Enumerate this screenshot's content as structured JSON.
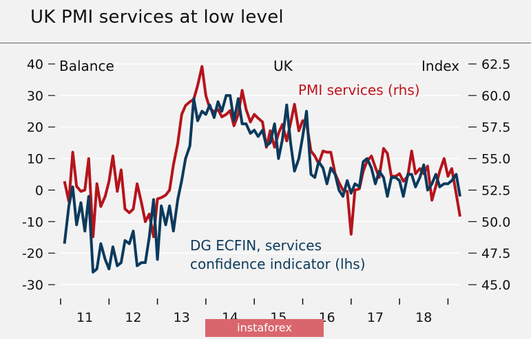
{
  "title": "UK PMI services at low level",
  "watermark": "instaforex",
  "chart_data": {
    "type": "line",
    "title": "UK PMI services at low level",
    "header_left": "Balance",
    "header_center": "UK",
    "header_right": "Index",
    "y_left": {
      "ticks": [
        40,
        30,
        20,
        10,
        0,
        -10,
        -20,
        -30
      ],
      "ylim": [
        -30,
        40
      ]
    },
    "y_right": {
      "ticks": [
        "62.5",
        "60.0",
        "57.5",
        "55.0",
        "52.5",
        "50.0",
        "47.5",
        "45.0"
      ],
      "ylim": [
        45.0,
        62.5
      ]
    },
    "x_ticks": [
      "11",
      "12",
      "13",
      "14",
      "15",
      "16",
      "17",
      "18"
    ],
    "x_range": [
      2010.5,
      2018.75
    ],
    "grid": true,
    "colors": {
      "pmi": "#b5141c",
      "dgecfin": "#0c3a5c"
    },
    "series": [
      {
        "name": "PMI services (rhs)",
        "axis": "right",
        "points": [
          [
            2010.58,
            53.2
          ],
          [
            2010.67,
            51.6
          ],
          [
            2010.75,
            55.5
          ],
          [
            2010.83,
            52.8
          ],
          [
            2010.92,
            52.4
          ],
          [
            2011.0,
            52.5
          ],
          [
            2011.08,
            55.0
          ],
          [
            2011.17,
            48.8
          ],
          [
            2011.25,
            53.0
          ],
          [
            2011.33,
            51.2
          ],
          [
            2011.42,
            52.0
          ],
          [
            2011.5,
            53.2
          ],
          [
            2011.58,
            55.2
          ],
          [
            2011.67,
            52.4
          ],
          [
            2011.75,
            54.1
          ],
          [
            2011.83,
            51.0
          ],
          [
            2011.92,
            50.7
          ],
          [
            2012.0,
            51.0
          ],
          [
            2012.08,
            53.0
          ],
          [
            2012.17,
            51.5
          ],
          [
            2012.25,
            50.0
          ],
          [
            2012.33,
            50.6
          ],
          [
            2012.42,
            48.8
          ],
          [
            2012.5,
            51.8
          ],
          [
            2012.58,
            51.9
          ],
          [
            2012.67,
            52.1
          ],
          [
            2012.75,
            52.5
          ],
          [
            2012.83,
            54.5
          ],
          [
            2012.92,
            56.2
          ],
          [
            2013.0,
            58.5
          ],
          [
            2013.08,
            59.2
          ],
          [
            2013.17,
            59.5
          ],
          [
            2013.25,
            59.7
          ],
          [
            2013.33,
            60.8
          ],
          [
            2013.42,
            62.3
          ],
          [
            2013.5,
            60.0
          ],
          [
            2013.58,
            59.0
          ],
          [
            2013.67,
            58.7
          ],
          [
            2013.75,
            58.9
          ],
          [
            2013.83,
            58.3
          ],
          [
            2013.92,
            58.5
          ],
          [
            2014.0,
            58.8
          ],
          [
            2014.08,
            57.6
          ],
          [
            2014.17,
            58.5
          ],
          [
            2014.25,
            60.4
          ],
          [
            2014.33,
            58.9
          ],
          [
            2014.42,
            57.9
          ],
          [
            2014.5,
            58.5
          ],
          [
            2014.58,
            58.2
          ],
          [
            2014.67,
            57.9
          ],
          [
            2014.75,
            55.9
          ],
          [
            2014.83,
            57.2
          ],
          [
            2014.92,
            55.9
          ],
          [
            2015.0,
            57.0
          ],
          [
            2015.08,
            57.7
          ],
          [
            2015.17,
            56.4
          ],
          [
            2015.25,
            57.8
          ],
          [
            2015.33,
            59.3
          ],
          [
            2015.42,
            57.2
          ],
          [
            2015.5,
            58.0
          ],
          [
            2015.58,
            57.8
          ],
          [
            2015.67,
            55.6
          ],
          [
            2015.75,
            55.2
          ],
          [
            2015.83,
            54.6
          ],
          [
            2015.92,
            55.6
          ],
          [
            2016.0,
            55.5
          ],
          [
            2016.08,
            55.5
          ],
          [
            2016.17,
            53.8
          ],
          [
            2016.25,
            53.1
          ],
          [
            2016.33,
            52.5
          ],
          [
            2016.42,
            52.4
          ],
          [
            2016.5,
            49.0
          ],
          [
            2016.58,
            52.5
          ],
          [
            2016.67,
            52.6
          ],
          [
            2016.75,
            54.0
          ],
          [
            2016.83,
            54.8
          ],
          [
            2016.92,
            55.2
          ],
          [
            2017.0,
            54.3
          ],
          [
            2017.08,
            53.5
          ],
          [
            2017.17,
            55.8
          ],
          [
            2017.25,
            55.4
          ],
          [
            2017.33,
            53.6
          ],
          [
            2017.42,
            53.6
          ],
          [
            2017.5,
            53.8
          ],
          [
            2017.58,
            53.2
          ],
          [
            2017.67,
            53.6
          ],
          [
            2017.75,
            55.6
          ],
          [
            2017.83,
            53.8
          ],
          [
            2017.92,
            54.2
          ],
          [
            2018.0,
            53.8
          ],
          [
            2018.08,
            54.4
          ],
          [
            2018.17,
            51.7
          ],
          [
            2018.25,
            52.8
          ],
          [
            2018.33,
            54.0
          ],
          [
            2018.42,
            55.0
          ],
          [
            2018.5,
            53.6
          ],
          [
            2018.58,
            54.2
          ],
          [
            2018.67,
            52.2
          ],
          [
            2018.75,
            50.4
          ]
        ]
      },
      {
        "name": "DG ECFIN, services confidence indicator (lhs)",
        "axis": "left",
        "points": [
          [
            2010.58,
            -17
          ],
          [
            2010.67,
            -5
          ],
          [
            2010.75,
            1
          ],
          [
            2010.83,
            -11
          ],
          [
            2010.92,
            -4
          ],
          [
            2011.0,
            -13
          ],
          [
            2011.08,
            -2
          ],
          [
            2011.17,
            -26
          ],
          [
            2011.25,
            -25
          ],
          [
            2011.33,
            -17
          ],
          [
            2011.42,
            -22
          ],
          [
            2011.5,
            -25
          ],
          [
            2011.58,
            -18
          ],
          [
            2011.67,
            -24
          ],
          [
            2011.75,
            -23
          ],
          [
            2011.83,
            -16
          ],
          [
            2011.92,
            -17
          ],
          [
            2012.0,
            -13
          ],
          [
            2012.08,
            -24
          ],
          [
            2012.17,
            -23
          ],
          [
            2012.25,
            -23
          ],
          [
            2012.33,
            -15
          ],
          [
            2012.42,
            -3
          ],
          [
            2012.5,
            -22
          ],
          [
            2012.58,
            -5
          ],
          [
            2012.67,
            -11
          ],
          [
            2012.75,
            -5
          ],
          [
            2012.83,
            -13
          ],
          [
            2012.92,
            -3
          ],
          [
            2013.0,
            3
          ],
          [
            2013.08,
            10
          ],
          [
            2013.17,
            14
          ],
          [
            2013.25,
            29
          ],
          [
            2013.33,
            22
          ],
          [
            2013.42,
            25
          ],
          [
            2013.5,
            24
          ],
          [
            2013.58,
            27
          ],
          [
            2013.67,
            23
          ],
          [
            2013.75,
            28
          ],
          [
            2013.83,
            25
          ],
          [
            2013.92,
            30
          ],
          [
            2014.0,
            30
          ],
          [
            2014.08,
            22
          ],
          [
            2014.17,
            29
          ],
          [
            2014.25,
            21
          ],
          [
            2014.33,
            21
          ],
          [
            2014.42,
            18
          ],
          [
            2014.5,
            19
          ],
          [
            2014.58,
            17
          ],
          [
            2014.67,
            19
          ],
          [
            2014.75,
            14
          ],
          [
            2014.83,
            15
          ],
          [
            2014.92,
            21
          ],
          [
            2015.0,
            10
          ],
          [
            2015.08,
            16
          ],
          [
            2015.17,
            27
          ],
          [
            2015.25,
            15
          ],
          [
            2015.33,
            6
          ],
          [
            2015.42,
            10
          ],
          [
            2015.5,
            17
          ],
          [
            2015.58,
            25
          ],
          [
            2015.67,
            5
          ],
          [
            2015.75,
            4
          ],
          [
            2015.83,
            9
          ],
          [
            2015.92,
            7
          ],
          [
            2016.0,
            2
          ],
          [
            2016.08,
            7
          ],
          [
            2016.17,
            5
          ],
          [
            2016.25,
            0
          ],
          [
            2016.33,
            -2
          ],
          [
            2016.42,
            3
          ],
          [
            2016.5,
            -1
          ],
          [
            2016.58,
            2
          ],
          [
            2016.67,
            1
          ],
          [
            2016.75,
            9
          ],
          [
            2016.83,
            10
          ],
          [
            2016.92,
            7
          ],
          [
            2017.0,
            2
          ],
          [
            2017.08,
            6
          ],
          [
            2017.17,
            4
          ],
          [
            2017.25,
            -2
          ],
          [
            2017.33,
            4
          ],
          [
            2017.42,
            4
          ],
          [
            2017.5,
            3
          ],
          [
            2017.58,
            -2
          ],
          [
            2017.67,
            5
          ],
          [
            2017.75,
            5
          ],
          [
            2017.83,
            1
          ],
          [
            2017.92,
            4
          ],
          [
            2018.0,
            8
          ],
          [
            2018.08,
            0
          ],
          [
            2018.17,
            2
          ],
          [
            2018.25,
            5
          ],
          [
            2018.33,
            1
          ],
          [
            2018.42,
            2
          ],
          [
            2018.5,
            2
          ],
          [
            2018.58,
            3
          ],
          [
            2018.67,
            5
          ],
          [
            2018.75,
            -2
          ]
        ]
      }
    ],
    "annotations": {
      "pmi_label": "PMI services (rhs)",
      "dg_label_line1": "DG ECFIN, services",
      "dg_label_line2": "confidence indicator (lhs)"
    }
  }
}
